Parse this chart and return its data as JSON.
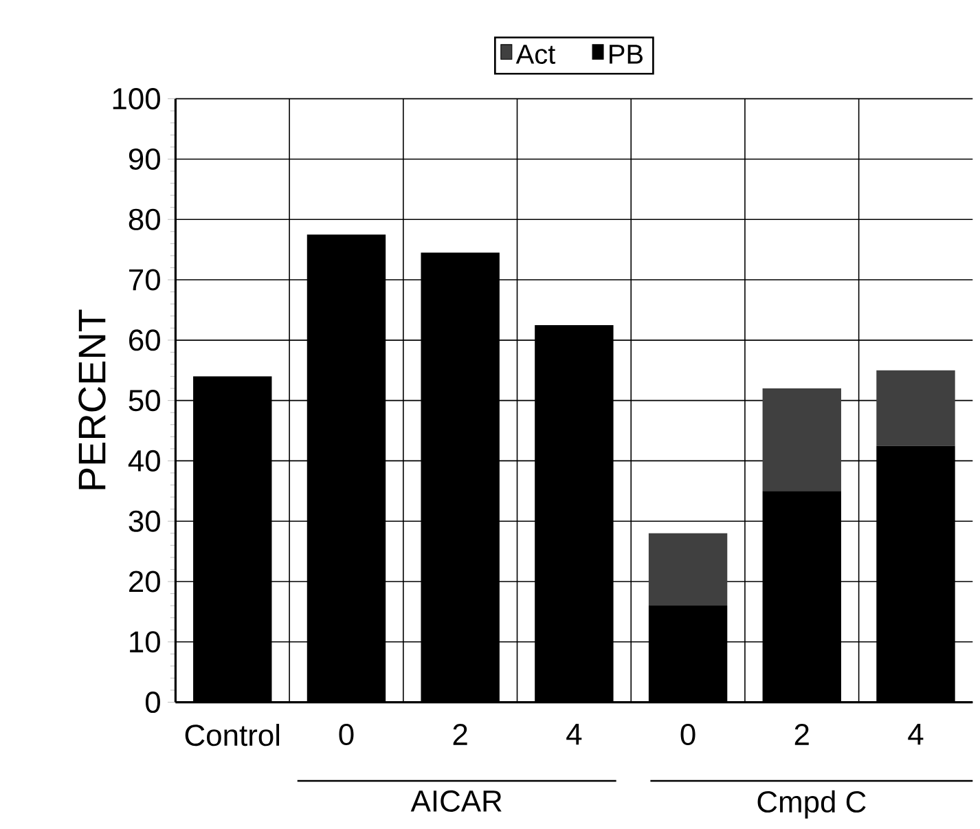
{
  "chart_data": {
    "type": "bar",
    "stacked": true,
    "ylabel": "PERCENT",
    "categories": [
      "Control",
      "0",
      "2",
      "4",
      "0",
      "2",
      "4"
    ],
    "series": [
      {
        "name": "PB",
        "color": "#000000",
        "values": [
          54,
          77.5,
          74.5,
          62.5,
          16,
          35,
          42.5
        ]
      },
      {
        "name": "Act",
        "color": "#404040",
        "values": [
          null,
          null,
          null,
          null,
          12,
          17,
          12.5
        ]
      }
    ],
    "ylim": [
      0,
      100
    ],
    "yticks": [
      0,
      10,
      20,
      30,
      40,
      50,
      60,
      70,
      80,
      90,
      100
    ],
    "grid": true,
    "legend": "top",
    "annotations": [
      "AICAR",
      "Cmpd C"
    ]
  }
}
